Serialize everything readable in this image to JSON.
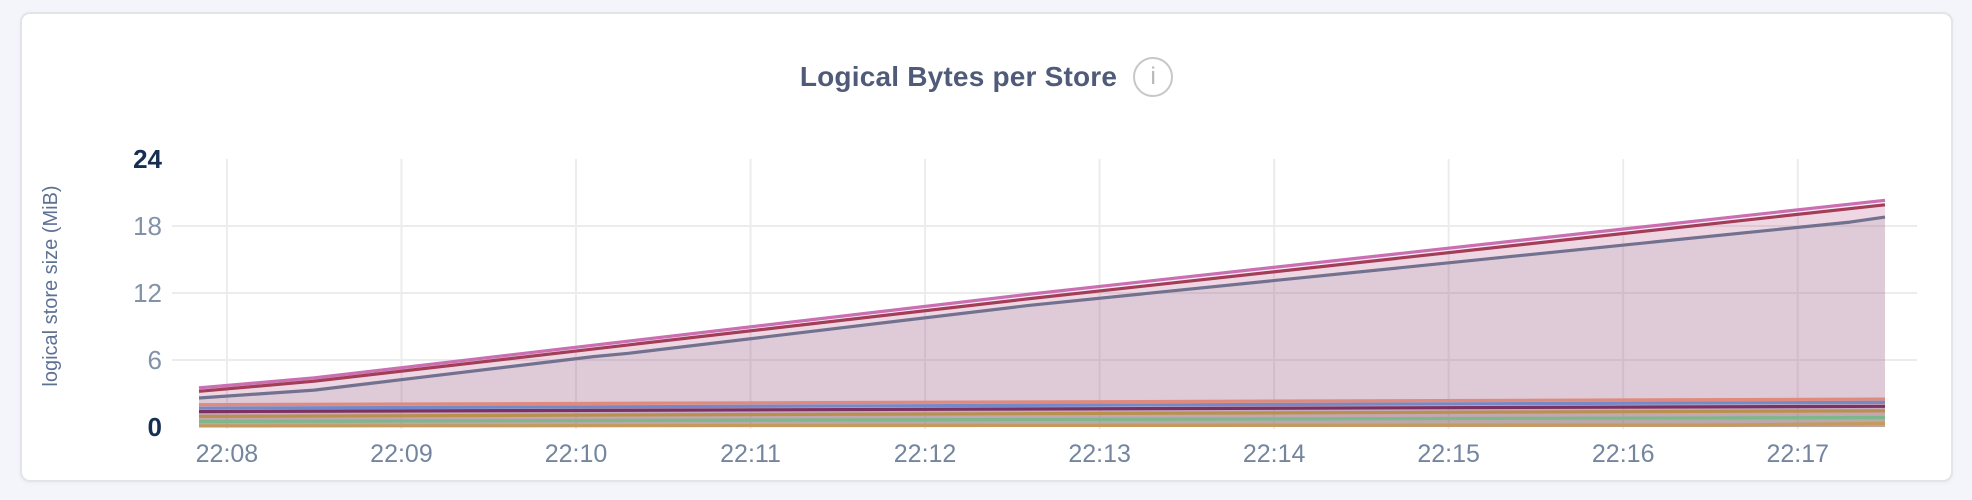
{
  "header": {
    "title": "Logical Bytes per Store",
    "info_icon_glyph": "i"
  },
  "colors": {
    "page_bg": "#f4f5fa",
    "card_bg": "#ffffff",
    "card_border": "#e3e4e8",
    "grid": "#ececec",
    "tick_bold": "#152e51",
    "tick_normal": "#8292a9",
    "x_tick": "#74859f",
    "axis_title": "#5d7195",
    "title": "#4f5b79"
  },
  "chart_data": {
    "type": "area",
    "title": "Logical Bytes per Store",
    "xlabel": "",
    "ylabel": "logical store size (MiB)",
    "ylim": [
      0,
      24
    ],
    "grid": "on",
    "legend": "none",
    "x_domain_minutes_after_2208": [
      -0.16,
      9.5
    ],
    "x_ticks": [
      {
        "t": 0,
        "label": "22:08"
      },
      {
        "t": 1,
        "label": "22:09"
      },
      {
        "t": 2,
        "label": "22:10"
      },
      {
        "t": 3,
        "label": "22:11"
      },
      {
        "t": 4,
        "label": "22:12"
      },
      {
        "t": 5,
        "label": "22:13"
      },
      {
        "t": 6,
        "label": "22:14"
      },
      {
        "t": 7,
        "label": "22:15"
      },
      {
        "t": 8,
        "label": "22:16"
      },
      {
        "t": 9,
        "label": "22:17"
      }
    ],
    "y_ticks": [
      {
        "v": 0,
        "label": "0",
        "bold": true
      },
      {
        "v": 6,
        "label": "6",
        "bold": false
      },
      {
        "v": 12,
        "label": "12",
        "bold": false
      },
      {
        "v": 18,
        "label": "18",
        "bold": false
      },
      {
        "v": 24,
        "label": "24",
        "bold": true
      }
    ],
    "fill_opacity": 0.12,
    "series": [
      {
        "id": "s1-pink",
        "color": "#ca6fb2",
        "points": [
          [
            -0.16,
            3.5
          ],
          [
            0.5,
            4.4
          ],
          [
            4.6,
            11.9
          ],
          [
            9.5,
            20.3
          ]
        ]
      },
      {
        "id": "s2-crimson",
        "color": "#a43d58",
        "points": [
          [
            -0.16,
            3.2
          ],
          [
            0.5,
            4.1
          ],
          [
            4.6,
            11.5
          ],
          [
            9.5,
            19.9
          ]
        ]
      },
      {
        "id": "s3-slate",
        "color": "#72718f",
        "points": [
          [
            -0.16,
            2.6
          ],
          [
            0.5,
            3.3
          ],
          [
            2.1,
            6.3
          ],
          [
            2.3,
            6.6
          ],
          [
            4.6,
            10.9
          ],
          [
            9.3,
            18.35
          ],
          [
            9.5,
            18.8
          ]
        ]
      },
      {
        "id": "s4-salmon",
        "color": "#df8a7c",
        "points": [
          [
            -0.16,
            2.0
          ],
          [
            9.5,
            2.5
          ]
        ]
      },
      {
        "id": "s5-periwinkle",
        "color": "#7589c8",
        "points": [
          [
            -0.16,
            1.68
          ],
          [
            9.5,
            2.2
          ]
        ]
      },
      {
        "id": "s6-darkmagenta",
        "color": "#7c3163",
        "points": [
          [
            -0.16,
            1.38
          ],
          [
            9.5,
            1.85
          ]
        ]
      },
      {
        "id": "s7-gold",
        "color": "#b9914f",
        "points": [
          [
            -0.16,
            0.95
          ],
          [
            9.5,
            1.45
          ]
        ]
      },
      {
        "id": "s8-green",
        "color": "#7eb78b",
        "points": [
          [
            -0.16,
            0.5
          ],
          [
            9.5,
            0.85
          ]
        ]
      },
      {
        "id": "s9-tan",
        "color": "#c49a5d",
        "points": [
          [
            -0.16,
            0.1
          ],
          [
            8.6,
            0.18
          ],
          [
            9.5,
            0.32
          ]
        ]
      }
    ]
  }
}
